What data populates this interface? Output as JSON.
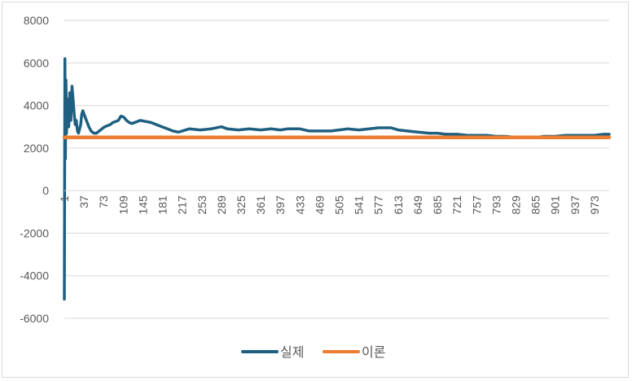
{
  "chart_data": {
    "type": "line",
    "title": "",
    "xlabel": "",
    "ylabel": "",
    "ylim": [
      -6000,
      8000
    ],
    "y_ticks": [
      8000,
      6000,
      4000,
      2000,
      0,
      -2000,
      -4000,
      -6000
    ],
    "x_range": [
      1,
      1000
    ],
    "x_ticks": [
      1,
      37,
      73,
      109,
      145,
      181,
      217,
      253,
      289,
      325,
      361,
      397,
      433,
      469,
      505,
      541,
      577,
      613,
      649,
      685,
      721,
      757,
      793,
      829,
      865,
      901,
      937,
      973
    ],
    "grid": "horizontal",
    "legend_position": "bottom",
    "series": [
      {
        "name": "실제",
        "color": "#1f5f7f",
        "points": [
          [
            1,
            -5100
          ],
          [
            2,
            6200
          ],
          [
            3,
            1500
          ],
          [
            4,
            5200
          ],
          [
            5,
            2700
          ],
          [
            7,
            4300
          ],
          [
            9,
            3000
          ],
          [
            11,
            4600
          ],
          [
            13,
            3300
          ],
          [
            15,
            4900
          ],
          [
            17,
            4300
          ],
          [
            19,
            3600
          ],
          [
            21,
            3100
          ],
          [
            23,
            3300
          ],
          [
            25,
            2800
          ],
          [
            27,
            2700
          ],
          [
            29,
            2900
          ],
          [
            31,
            3100
          ],
          [
            33,
            3600
          ],
          [
            35,
            3750
          ],
          [
            37,
            3600
          ],
          [
            40,
            3400
          ],
          [
            43,
            3200
          ],
          [
            46,
            3000
          ],
          [
            50,
            2800
          ],
          [
            55,
            2700
          ],
          [
            60,
            2700
          ],
          [
            65,
            2800
          ],
          [
            70,
            2900
          ],
          [
            75,
            3000
          ],
          [
            80,
            3050
          ],
          [
            85,
            3100
          ],
          [
            90,
            3200
          ],
          [
            95,
            3250
          ],
          [
            100,
            3300
          ],
          [
            105,
            3500
          ],
          [
            110,
            3450
          ],
          [
            115,
            3300
          ],
          [
            120,
            3200
          ],
          [
            125,
            3150
          ],
          [
            130,
            3200
          ],
          [
            135,
            3250
          ],
          [
            140,
            3300
          ],
          [
            150,
            3250
          ],
          [
            160,
            3200
          ],
          [
            170,
            3100
          ],
          [
            180,
            3000
          ],
          [
            190,
            2900
          ],
          [
            200,
            2800
          ],
          [
            210,
            2750
          ],
          [
            217,
            2800
          ],
          [
            230,
            2900
          ],
          [
            250,
            2850
          ],
          [
            270,
            2900
          ],
          [
            289,
            3000
          ],
          [
            300,
            2900
          ],
          [
            320,
            2850
          ],
          [
            340,
            2900
          ],
          [
            361,
            2850
          ],
          [
            380,
            2900
          ],
          [
            397,
            2850
          ],
          [
            410,
            2900
          ],
          [
            433,
            2900
          ],
          [
            450,
            2800
          ],
          [
            469,
            2800
          ],
          [
            490,
            2800
          ],
          [
            505,
            2850
          ],
          [
            520,
            2900
          ],
          [
            541,
            2850
          ],
          [
            560,
            2900
          ],
          [
            577,
            2950
          ],
          [
            600,
            2950
          ],
          [
            613,
            2850
          ],
          [
            630,
            2800
          ],
          [
            649,
            2750
          ],
          [
            670,
            2700
          ],
          [
            685,
            2700
          ],
          [
            700,
            2650
          ],
          [
            721,
            2650
          ],
          [
            740,
            2600
          ],
          [
            757,
            2600
          ],
          [
            775,
            2600
          ],
          [
            793,
            2550
          ],
          [
            810,
            2550
          ],
          [
            829,
            2500
          ],
          [
            845,
            2500
          ],
          [
            865,
            2500
          ],
          [
            880,
            2550
          ],
          [
            901,
            2550
          ],
          [
            920,
            2600
          ],
          [
            937,
            2600
          ],
          [
            955,
            2600
          ],
          [
            973,
            2600
          ],
          [
            990,
            2650
          ],
          [
            1000,
            2650
          ]
        ]
      },
      {
        "name": "이론",
        "color": "#ed7d31",
        "points": [
          [
            1,
            2500
          ],
          [
            1000,
            2500
          ]
        ]
      }
    ]
  }
}
